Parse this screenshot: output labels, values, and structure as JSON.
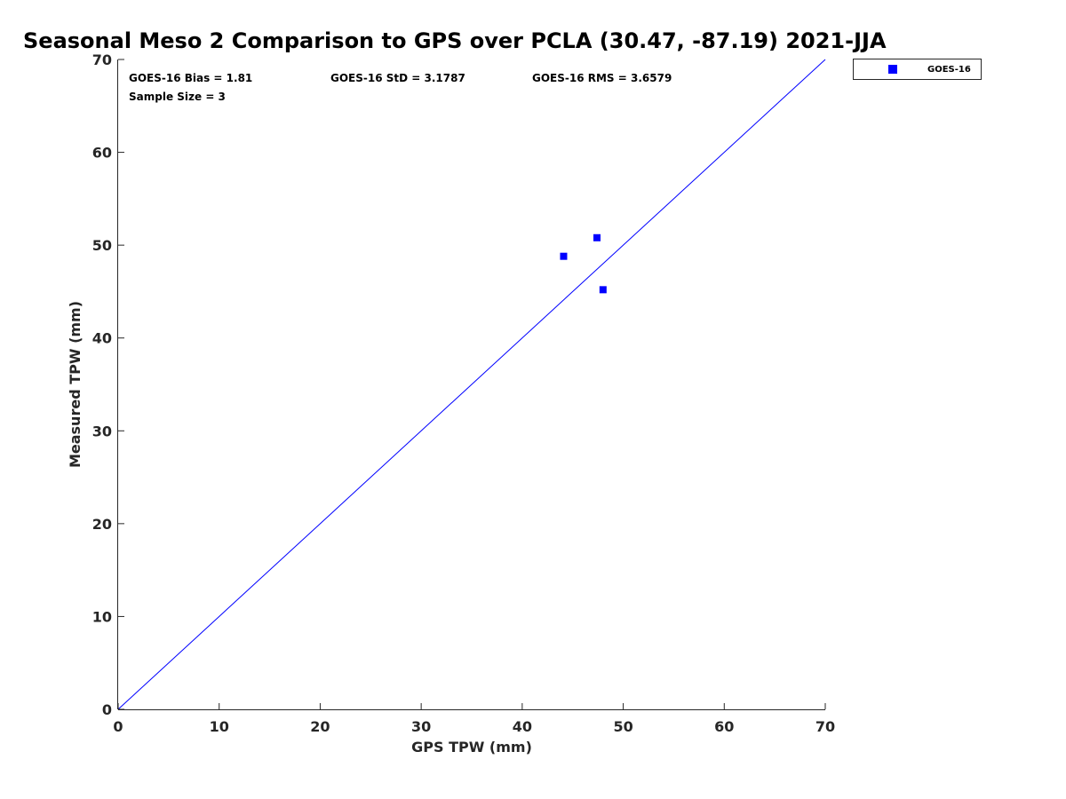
{
  "chart_data": {
    "type": "scatter",
    "title": "Seasonal Meso 2 Comparison to GPS over PCLA (30.47, -87.19) 2021-JJA",
    "xlabel": "GPS TPW (mm)",
    "ylabel": "Measured TPW (mm)",
    "xlim": [
      0,
      70
    ],
    "ylim": [
      0,
      70
    ],
    "xticks": [
      0,
      10,
      20,
      30,
      40,
      50,
      60,
      70
    ],
    "yticks": [
      0,
      10,
      20,
      30,
      40,
      50,
      60,
      70
    ],
    "grid": false,
    "legend_position": "outside-top-right",
    "series": [
      {
        "name": "GOES-16",
        "color": "#0000ff",
        "marker": "square",
        "points": [
          {
            "x": 44.1,
            "y": 48.8
          },
          {
            "x": 47.4,
            "y": 50.8
          },
          {
            "x": 48.0,
            "y": 45.2
          }
        ]
      }
    ],
    "reference_line": {
      "from": [
        0,
        0
      ],
      "to": [
        70,
        70
      ],
      "color": "#0000ff"
    },
    "annotations": {
      "bias": "GOES-16 Bias = 1.81",
      "std": "GOES-16 StD = 3.1787",
      "rms": "GOES-16 RMS = 3.6579",
      "sample_size": "Sample Size = 3"
    }
  }
}
